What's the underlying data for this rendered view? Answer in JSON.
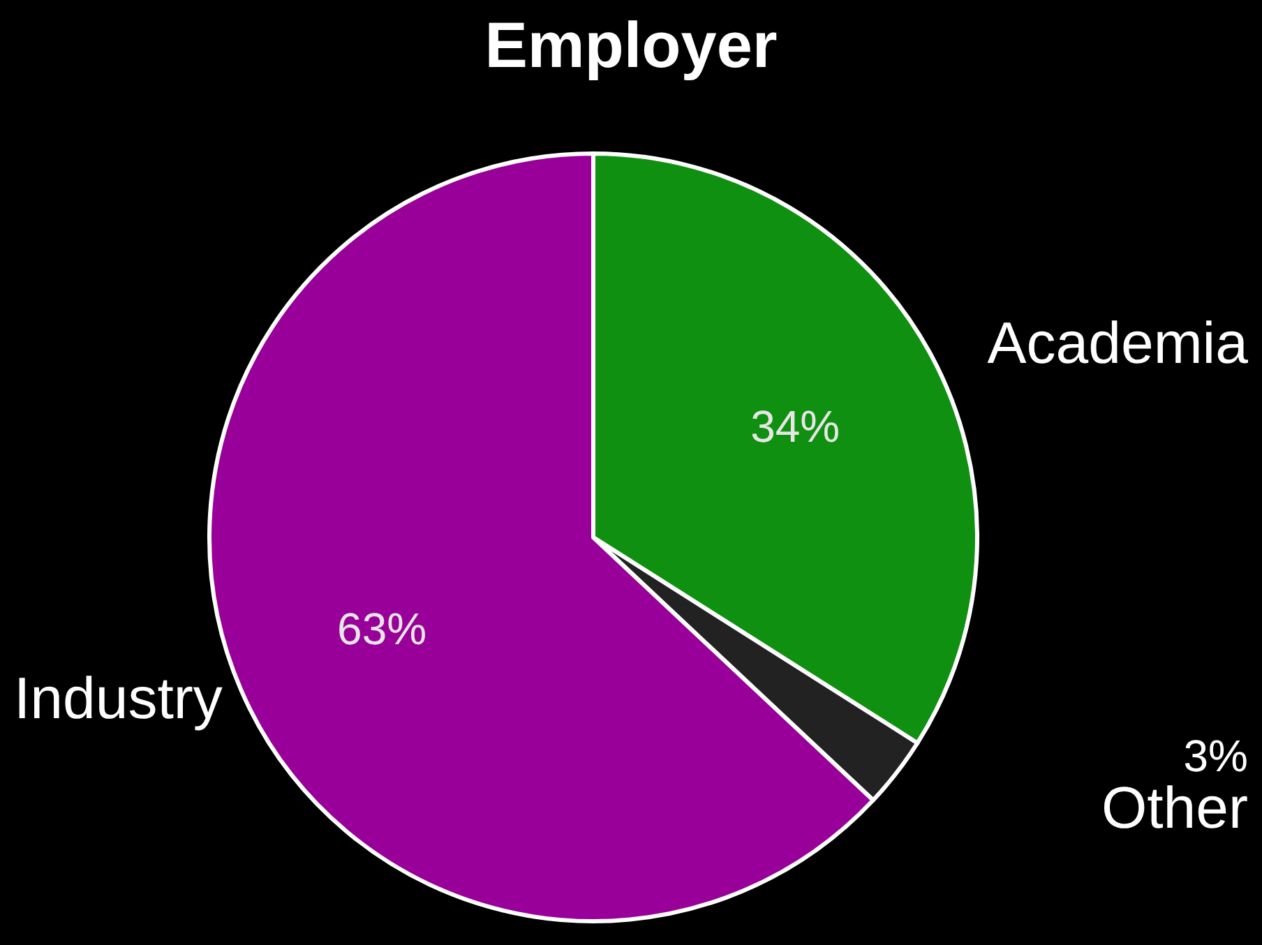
{
  "chart_data": {
    "type": "pie",
    "title": "Employer",
    "categories": [
      "Academia",
      "Other",
      "Industry"
    ],
    "values": [
      34,
      3,
      63
    ],
    "colors": [
      "#109010",
      "#222222",
      "#990099"
    ],
    "value_labels": [
      "34%",
      "3%",
      "63%"
    ],
    "legend": false
  }
}
